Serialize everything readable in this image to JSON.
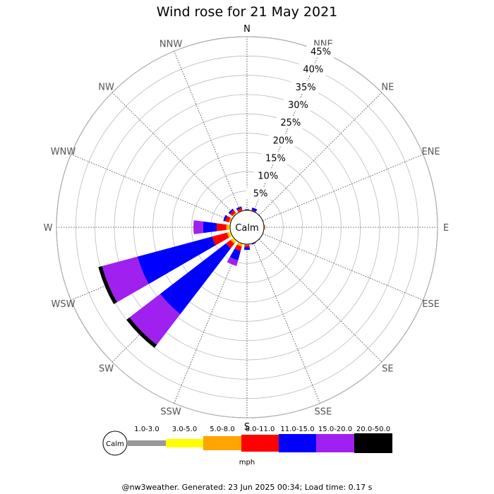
{
  "title": "Wind rose for 21 May 2021",
  "footer": "@nw3weather. Generated: 23 Jun 2025 00:34; Load time: 0.17 s",
  "chart_data": {
    "type": "wind-rose",
    "title": "Wind rose for 21 May 2021",
    "directions": [
      "N",
      "NNE",
      "NE",
      "ENE",
      "E",
      "ESE",
      "SE",
      "SSE",
      "S",
      "SSW",
      "SW",
      "WSW",
      "W",
      "WNW",
      "NW",
      "NNW"
    ],
    "radial_ticks": [
      "5%",
      "10%",
      "15%",
      "20%",
      "25%",
      "30%",
      "35%",
      "40%",
      "45%"
    ],
    "radial_max": 45,
    "calm_label": "Calm",
    "unit": "mph",
    "bins": [
      {
        "label": "1.0-3.0",
        "color": "#999999"
      },
      {
        "label": "3.0-5.0",
        "color": "#ffff00"
      },
      {
        "label": "5.0-8.0",
        "color": "#ffa500"
      },
      {
        "label": "8.0-11.0",
        "color": "#ff0000"
      },
      {
        "label": "11.0-15.0",
        "color": "#0000ff"
      },
      {
        "label": "15.0-20.0",
        "color": "#a020f0"
      },
      {
        "label": "20.0-50.0",
        "color": "#000000"
      }
    ],
    "series": [
      {
        "direction": "N",
        "cumulative_pct": [
          0.0,
          0.0,
          0.1,
          0.2,
          0.3,
          0.3,
          0.3
        ]
      },
      {
        "direction": "NNE",
        "cumulative_pct": [
          0.0,
          0.0,
          0.1,
          0.3,
          0.9,
          0.9,
          0.9
        ]
      },
      {
        "direction": "NE",
        "cumulative_pct": [
          0.0,
          0.0,
          0.0,
          0.0,
          0.0,
          0.0,
          0.0
        ]
      },
      {
        "direction": "ENE",
        "cumulative_pct": [
          0.0,
          0.0,
          0.0,
          0.0,
          0.0,
          0.0,
          0.0
        ]
      },
      {
        "direction": "E",
        "cumulative_pct": [
          0.0,
          0.0,
          0.2,
          0.3,
          0.3,
          0.3,
          0.3
        ]
      },
      {
        "direction": "ESE",
        "cumulative_pct": [
          0.0,
          0.0,
          0.0,
          0.1,
          0.1,
          0.1,
          0.1
        ]
      },
      {
        "direction": "SE",
        "cumulative_pct": [
          0.0,
          0.0,
          0.0,
          0.0,
          0.0,
          0.0,
          0.0
        ]
      },
      {
        "direction": "SSE",
        "cumulative_pct": [
          0.0,
          0.0,
          0.1,
          0.2,
          0.3,
          0.3,
          0.3
        ]
      },
      {
        "direction": "S",
        "cumulative_pct": [
          0.0,
          0.0,
          0.3,
          0.8,
          1.5,
          1.5,
          1.5
        ]
      },
      {
        "direction": "SSW",
        "cumulative_pct": [
          0.0,
          0.3,
          0.8,
          2.0,
          4.5,
          6.0,
          6.0
        ]
      },
      {
        "direction": "SW",
        "cumulative_pct": [
          0.0,
          0.5,
          1.0,
          2.5,
          24.0,
          34.0,
          35.0
        ]
      },
      {
        "direction": "WSW",
        "cumulative_pct": [
          0.0,
          0.5,
          1.0,
          5.0,
          25.0,
          34.5,
          35.5
        ]
      },
      {
        "direction": "W",
        "cumulative_pct": [
          0.0,
          0.3,
          1.0,
          3.5,
          7.0,
          9.5,
          9.5
        ]
      },
      {
        "direction": "WNW",
        "cumulative_pct": [
          0.0,
          0.2,
          0.5,
          1.5,
          2.0,
          2.0,
          2.0
        ]
      },
      {
        "direction": "NW",
        "cumulative_pct": [
          0.0,
          0.2,
          0.4,
          1.2,
          1.7,
          1.7,
          1.7
        ]
      },
      {
        "direction": "NNW",
        "cumulative_pct": [
          0.0,
          0.0,
          0.2,
          0.8,
          1.2,
          1.2,
          1.2
        ]
      }
    ]
  }
}
